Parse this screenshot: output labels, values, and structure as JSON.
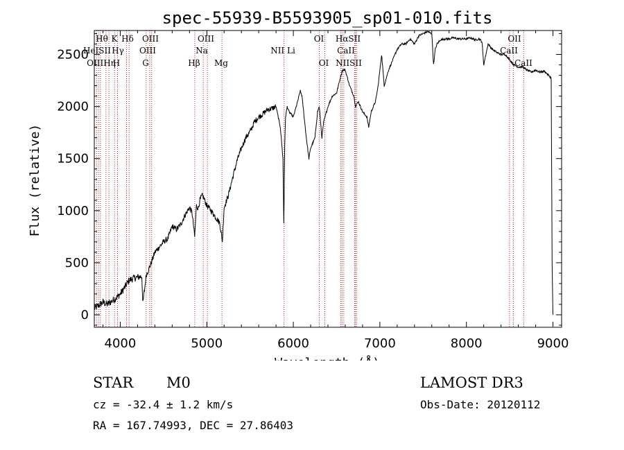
{
  "chart_data": {
    "type": "line",
    "title": "spec-55939-B5593905_sp01-010.fits",
    "xlabel": "Wavelength (Å)",
    "ylabel": "Flux (relative)",
    "xlim": [
      3700,
      9100
    ],
    "ylim": [
      -120,
      2730
    ],
    "xticks": [
      4000,
      5000,
      6000,
      7000,
      8000,
      9000
    ],
    "yticks": [
      0,
      500,
      1000,
      1500,
      2000,
      2500
    ],
    "grid": false,
    "series": [
      {
        "name": "flux",
        "color": "#000000",
        "x": [
          3700,
          3750,
          3800,
          3850,
          3900,
          3950,
          4000,
          4050,
          4100,
          4150,
          4200,
          4250,
          4260,
          4300,
          4320,
          4350,
          4400,
          4450,
          4500,
          4550,
          4600,
          4650,
          4700,
          4750,
          4800,
          4830,
          4860,
          4880,
          4900,
          4920,
          4950,
          5000,
          5050,
          5100,
          5150,
          5180,
          5200,
          5250,
          5300,
          5350,
          5400,
          5450,
          5500,
          5550,
          5600,
          5650,
          5700,
          5750,
          5800,
          5850,
          5880,
          5890,
          5900,
          5910,
          5930,
          5950,
          6000,
          6050,
          6080,
          6100,
          6150,
          6180,
          6200,
          6250,
          6280,
          6300,
          6330,
          6350,
          6400,
          6450,
          6500,
          6550,
          6570,
          6600,
          6650,
          6700,
          6720,
          6750,
          6800,
          6850,
          6870,
          6900,
          6950,
          6980,
          7000,
          7020,
          7050,
          7100,
          7150,
          7200,
          7250,
          7300,
          7350,
          7400,
          7450,
          7500,
          7550,
          7600,
          7620,
          7640,
          7660,
          7700,
          7750,
          7800,
          7850,
          7900,
          7950,
          8000,
          8050,
          8100,
          8150,
          8180,
          8200,
          8250,
          8300,
          8350,
          8400,
          8450,
          8500,
          8550,
          8600,
          8650,
          8700,
          8750,
          8800,
          8850,
          8900,
          8950,
          8980,
          8990,
          9000
        ],
        "values": [
          60,
          90,
          120,
          100,
          130,
          160,
          200,
          260,
          330,
          350,
          360,
          370,
          100,
          380,
          420,
          480,
          600,
          650,
          700,
          730,
          850,
          820,
          870,
          960,
          1030,
          980,
          750,
          1050,
          1020,
          1100,
          1150,
          1050,
          1000,
          940,
          880,
          700,
          1030,
          1150,
          1320,
          1480,
          1600,
          1700,
          1760,
          1850,
          1900,
          1930,
          1970,
          1980,
          2000,
          1800,
          1500,
          880,
          1600,
          1900,
          2000,
          1950,
          1900,
          2050,
          2150,
          2100,
          1700,
          1500,
          1600,
          1700,
          1950,
          2000,
          1700,
          1850,
          2000,
          2100,
          2130,
          2300,
          2350,
          2350,
          2200,
          2100,
          2000,
          2050,
          1950,
          1900,
          1800,
          1950,
          2050,
          2200,
          2350,
          2500,
          2200,
          2350,
          2450,
          2550,
          2600,
          2600,
          2650,
          2600,
          2680,
          2700,
          2720,
          2700,
          2400,
          2550,
          2600,
          2640,
          2650,
          2650,
          2660,
          2650,
          2650,
          2650,
          2660,
          2640,
          2650,
          2620,
          2400,
          2600,
          2550,
          2520,
          2500,
          2500,
          2450,
          2400,
          2380,
          2380,
          2350,
          2330,
          2350,
          2330,
          2340,
          2300,
          2270,
          500,
          0
        ]
      }
    ],
    "line_ids": [
      {
        "wavelength": 3727,
        "labels": [
          "OII"
        ]
      },
      {
        "wavelength": 3750,
        "labels": [
          "OIII"
        ]
      },
      {
        "wavelength": 3770,
        "labels": [
          "Hθ"
        ]
      },
      {
        "wavelength": 3835,
        "labels": [
          "Hη"
        ]
      },
      {
        "wavelength": 3869,
        "labels": [
          "HeI"
        ]
      },
      {
        "wavelength": 3934,
        "labels": [
          "K"
        ]
      },
      {
        "wavelength": 3968,
        "labels": [
          "H"
        ]
      },
      {
        "wavelength": 4072,
        "labels": [
          "SII"
        ]
      },
      {
        "wavelength": 4102,
        "labels": [
          "Hδ"
        ]
      },
      {
        "wavelength": 4300,
        "labels": [
          "G"
        ]
      },
      {
        "wavelength": 4340,
        "labels": [
          "Hγ"
        ]
      },
      {
        "wavelength": 4363,
        "labels": [
          "OIII"
        ]
      },
      {
        "wavelength": 4861,
        "labels": [
          "Hβ"
        ]
      },
      {
        "wavelength": 4959,
        "labels": [
          "OIII"
        ]
      },
      {
        "wavelength": 5007,
        "labels": [
          "OIII"
        ]
      },
      {
        "wavelength": 5175,
        "labels": [
          "Mg"
        ]
      },
      {
        "wavelength": 5893,
        "labels": [
          "Na"
        ]
      },
      {
        "wavelength": 6300,
        "labels": [
          "OI"
        ]
      },
      {
        "wavelength": 6364,
        "labels": [
          "OI"
        ]
      },
      {
        "wavelength": 6548,
        "labels": [
          "NII"
        ]
      },
      {
        "wavelength": 6563,
        "labels": [
          "Hα"
        ]
      },
      {
        "wavelength": 6583,
        "labels": [
          "NII"
        ]
      },
      {
        "wavelength": 6708,
        "labels": [
          "Li"
        ]
      },
      {
        "wavelength": 6717,
        "labels": [
          "SII"
        ]
      },
      {
        "wavelength": 6731,
        "labels": [
          "SII"
        ]
      },
      {
        "wavelength": 8498,
        "labels": [
          "CaII"
        ]
      },
      {
        "wavelength": 8542,
        "labels": [
          "CaII"
        ]
      },
      {
        "wavelength": 8662,
        "labels": [
          "CaII"
        ]
      }
    ],
    "annotation_texts": [
      "Hθ",
      "K",
      "Hδ",
      "OIII",
      "OIII",
      "OI",
      "HαSII",
      "OII",
      "HeISII",
      "Hγ",
      "OIII",
      "Na",
      "NII Li",
      "CaII",
      "CaII",
      "OIIIHη",
      "H",
      "G",
      "Hβ",
      "Mg",
      "OI",
      "NIISII",
      "CaII"
    ]
  },
  "info": {
    "object_class": "STAR",
    "subclass": "M0",
    "survey": "LAMOST DR3",
    "cz": "cz = -32.4 ± 1.2 km/s",
    "obs_date": "Obs-Date: 20120112",
    "coords": "RA = 167.74993, DEC =  27.86403"
  },
  "colors": {
    "axis": "#000000",
    "spectrum": "#000000",
    "line_marker": "#b22222"
  }
}
